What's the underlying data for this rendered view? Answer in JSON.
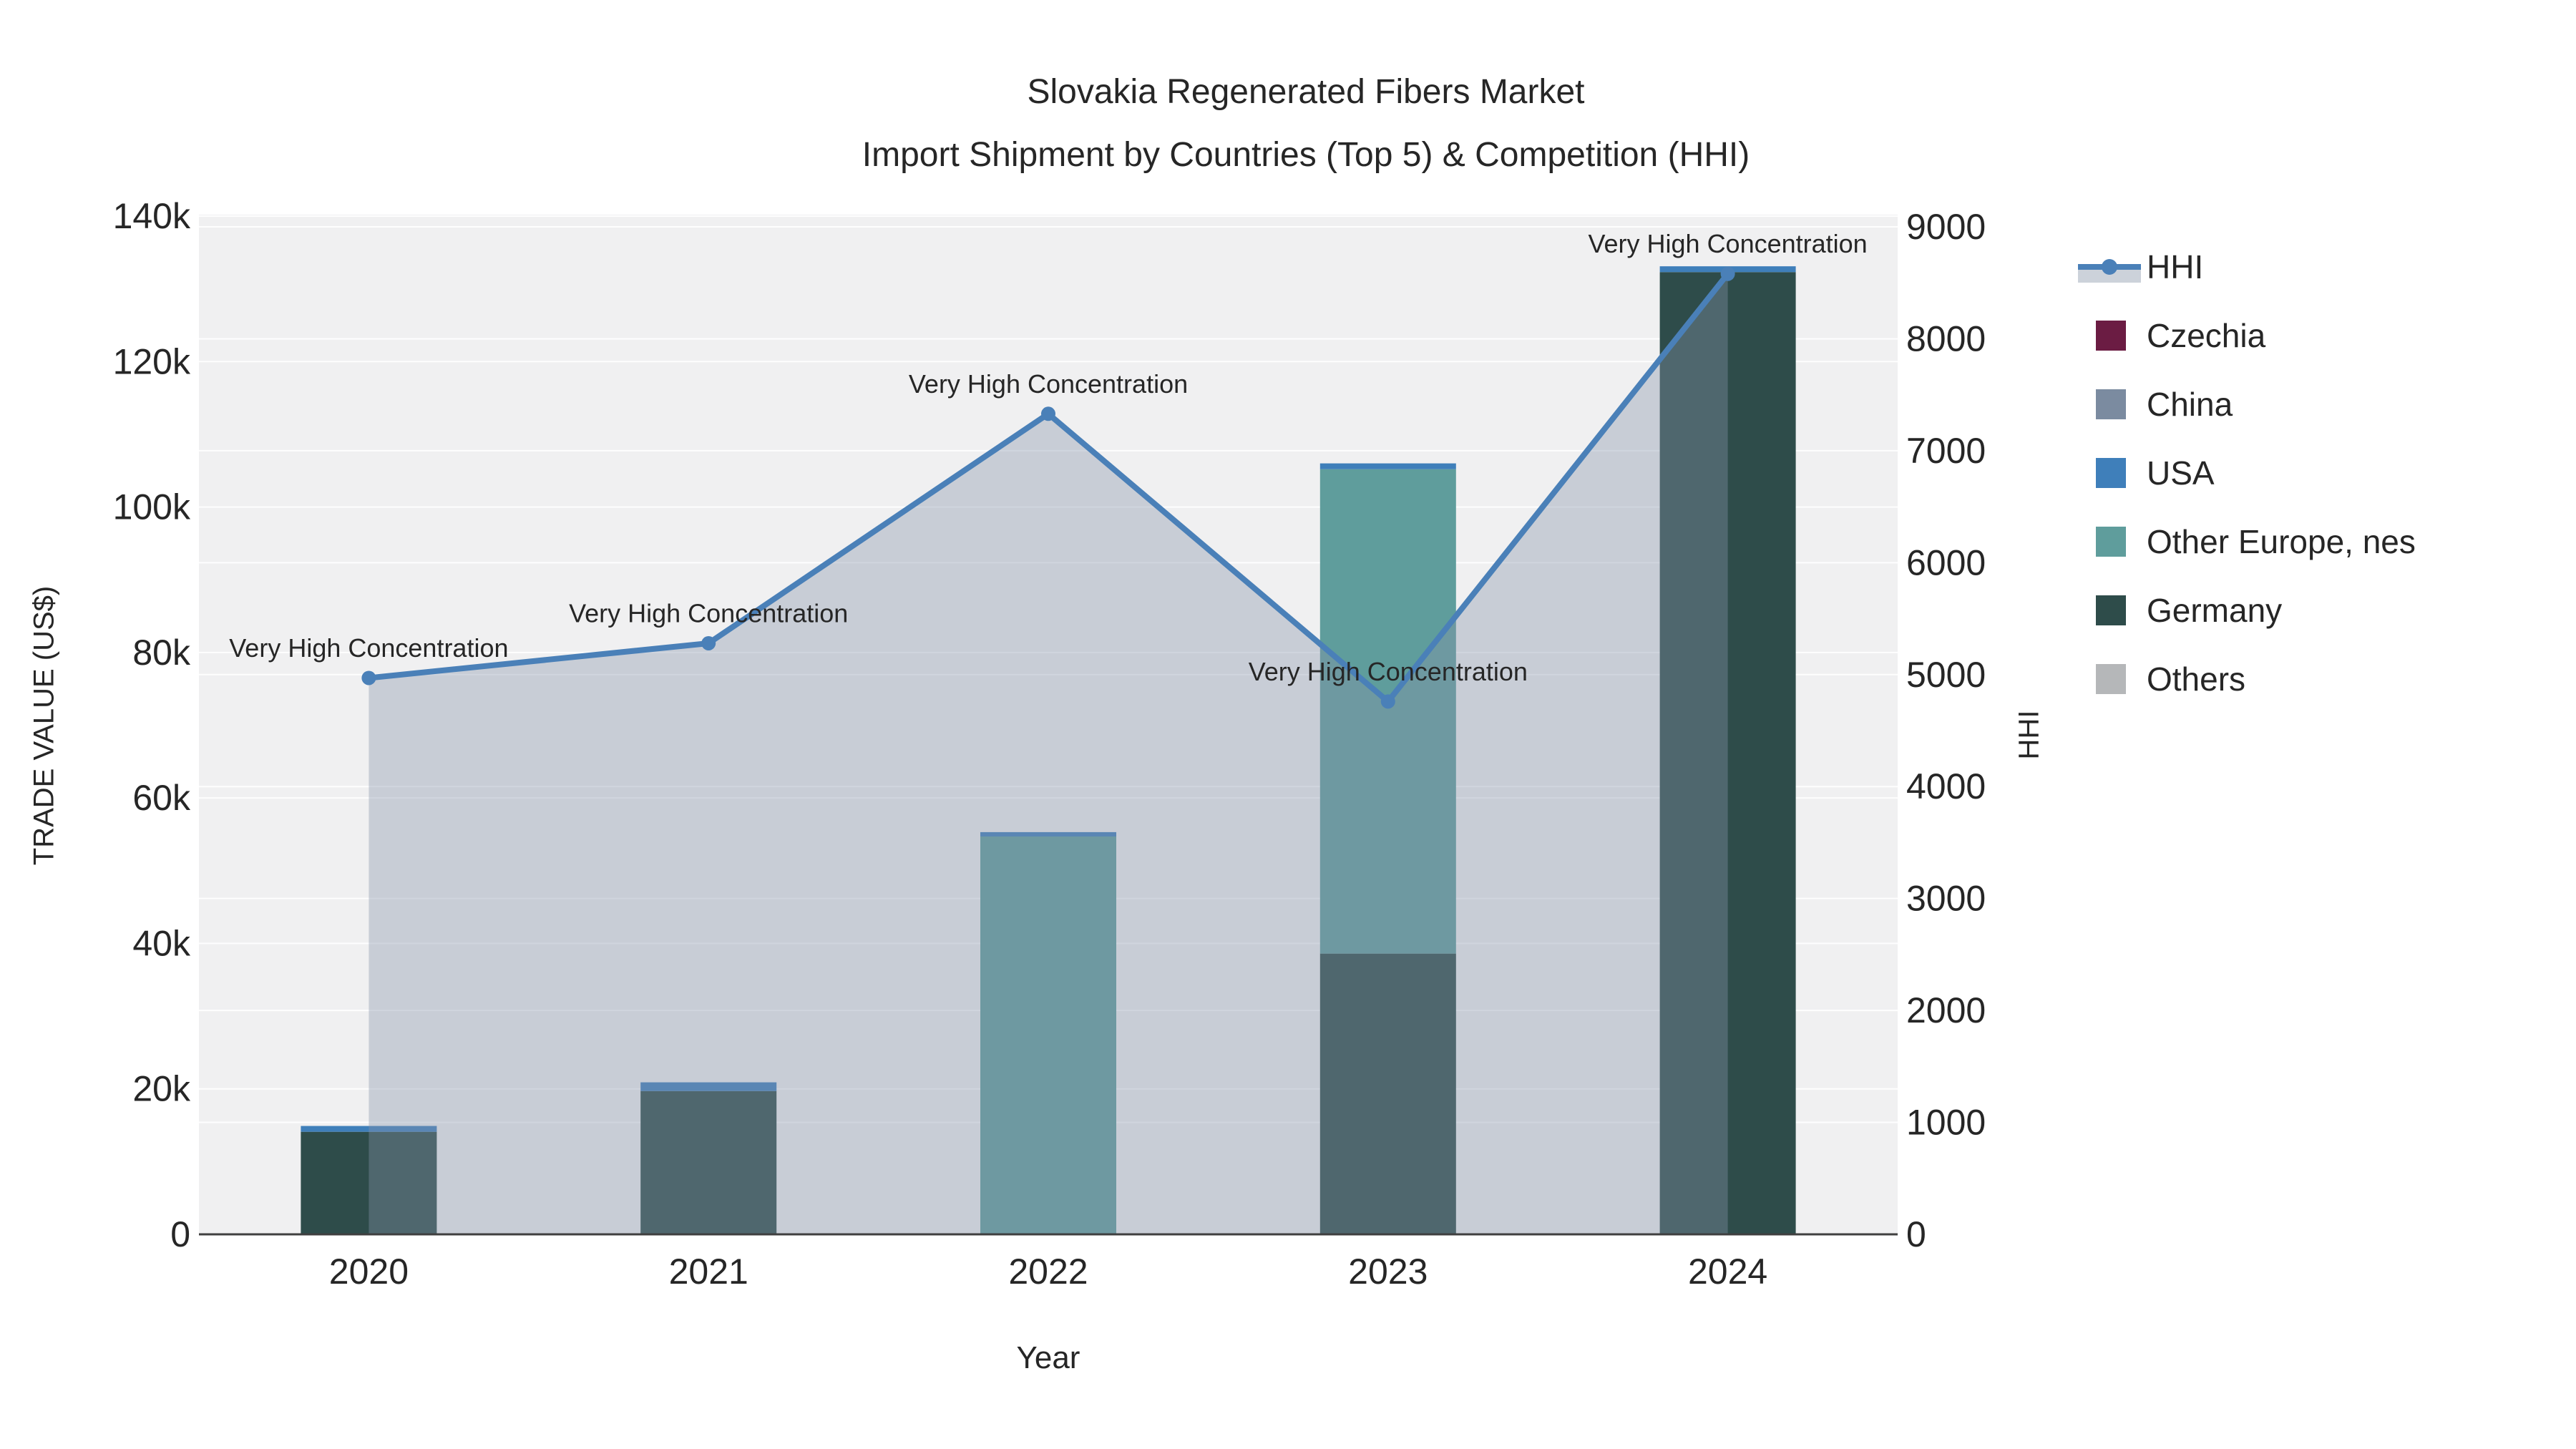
{
  "title": {
    "line1": "Slovakia Regenerated Fibers Market",
    "line2": "Import Shipment by Countries (Top 5) & Competition (HHI)"
  },
  "axes": {
    "x_label": "Year",
    "y_left_label": "TRADE VALUE (US$)",
    "y_right_label": "HHI"
  },
  "colors": {
    "hhi_line": "#4a80b8",
    "hhi_area_fill": "rgba(133,146,171,0.38)",
    "plot_background": "#f0f0f1",
    "gridline": "rgba(255,255,255,0.9)",
    "axis_line": "#3f3f3f",
    "text": "#262626"
  },
  "legend": {
    "items": [
      {
        "label": "HHI",
        "type": "line",
        "color": "#4a80b8"
      },
      {
        "label": "Czechia",
        "type": "square",
        "color": "#6b1c43"
      },
      {
        "label": "China",
        "type": "square",
        "color": "#7b8ba0"
      },
      {
        "label": "USA",
        "type": "square",
        "color": "#3f7fba"
      },
      {
        "label": "Other Europe, nes",
        "type": "square",
        "color": "#5f9d9c"
      },
      {
        "label": "Germany",
        "type": "square",
        "color": "#2e4c4a"
      },
      {
        "label": "Others",
        "type": "square",
        "color": "#b5b7b9"
      }
    ]
  },
  "chart_data": {
    "type": "bar",
    "subtype": "stacked bars (left axis) + line with markers and area fill (right axis)",
    "title": "Slovakia Regenerated Fibers Market — Import Shipment by Countries (Top 5) & Competition (HHI)",
    "xlabel": "Year",
    "ylabel_left": "TRADE VALUE (US$)",
    "ylabel_right": "HHI",
    "categories": [
      "2020",
      "2021",
      "2022",
      "2023",
      "2024"
    ],
    "bar_stack_order_note": "series listed bottom-to-top in each stacked bar",
    "series": [
      {
        "name": "Germany",
        "color": "#2e4c4a",
        "axis": "left",
        "values": [
          14100,
          19700,
          0,
          38600,
          132300
        ]
      },
      {
        "name": "Other Europe, nes",
        "color": "#5f9d9c",
        "axis": "left",
        "values": [
          0,
          0,
          54700,
          66600,
          0
        ]
      },
      {
        "name": "Czechia",
        "color": "#6b1c43",
        "axis": "left",
        "values": [
          0,
          0,
          0,
          0,
          0
        ]
      },
      {
        "name": "China",
        "color": "#7b8ba0",
        "axis": "left",
        "values": [
          0,
          0,
          0,
          0,
          0
        ]
      },
      {
        "name": "USA",
        "color": "#3f7fba",
        "axis": "left",
        "values": [
          800,
          1200,
          600,
          800,
          800
        ]
      },
      {
        "name": "Others",
        "color": "#b5b7b9",
        "axis": "left",
        "values": [
          0,
          0,
          0,
          0,
          0
        ]
      }
    ],
    "bar_totals": [
      14900,
      20900,
      55300,
      106000,
      133100
    ],
    "line_series": {
      "name": "HHI",
      "axis": "right",
      "color": "#4a80b8",
      "fill": "tozero",
      "fill_color": "rgba(133,146,171,0.38)",
      "values": [
        4970,
        5280,
        7330,
        4760,
        8580
      ]
    },
    "annotations": [
      {
        "category": "2020",
        "text": "Very High Concentration"
      },
      {
        "category": "2021",
        "text": "Very High Concentration"
      },
      {
        "category": "2022",
        "text": "Very High Concentration"
      },
      {
        "category": "2023",
        "text": "Very High Concentration"
      },
      {
        "category": "2024",
        "text": "Very High Concentration"
      }
    ],
    "y_left": {
      "range": [
        0,
        140000
      ],
      "ticks": [
        0,
        20000,
        40000,
        60000,
        80000,
        100000,
        120000,
        140000
      ],
      "tick_labels": [
        "0",
        "20k",
        "40k",
        "60k",
        "80k",
        "100k",
        "120k",
        "140k"
      ]
    },
    "y_right": {
      "range": [
        0,
        9000
      ],
      "ticks": [
        0,
        1000,
        2000,
        3000,
        4000,
        5000,
        6000,
        7000,
        8000,
        9000
      ],
      "tick_labels": [
        "0",
        "1000",
        "2000",
        "3000",
        "4000",
        "5000",
        "6000",
        "7000",
        "8000",
        "9000"
      ]
    },
    "grid": true,
    "legend_position": "right"
  }
}
